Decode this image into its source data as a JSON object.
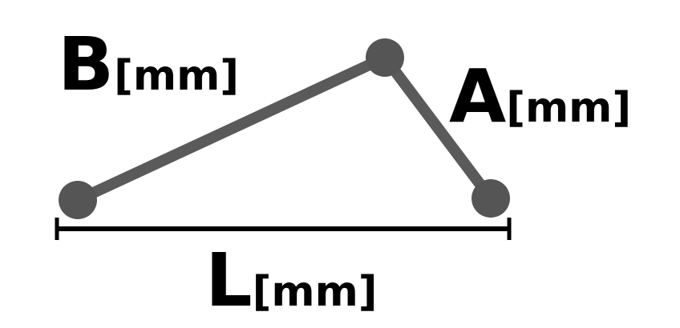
{
  "labels": {
    "b": {
      "main": "B",
      "unit": "[mm]"
    },
    "a": {
      "main": "A",
      "unit": "[mm]"
    },
    "l": {
      "main": "L",
      "unit": "[mm]"
    }
  },
  "colors": {
    "link": "#5a5a5a",
    "joint": "#555555",
    "dimension": "#000000",
    "text": "#000000",
    "background": "#ffffff"
  }
}
